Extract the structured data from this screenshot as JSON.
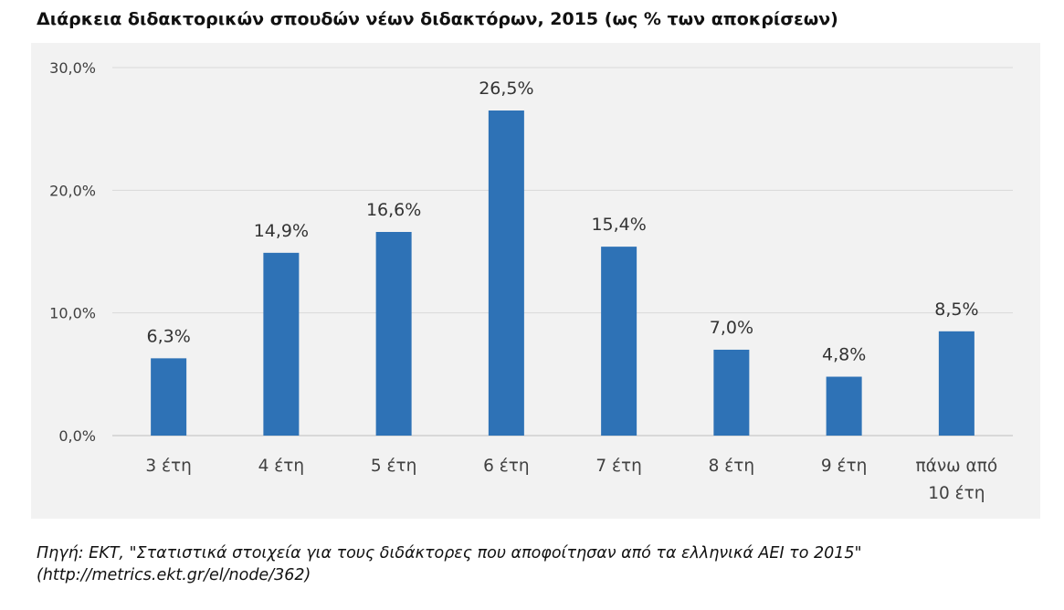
{
  "title": "Διάρκεια διδακτορικών σπουδών νέων διδακτόρων, 2015 (ως % των αποκρίσεων)",
  "source": {
    "line1": "Πηγή: ΕΚΤ, \"Στατιστικά στοιχεία για τους διδάκτορες που αποφοίτησαν από τα ελληνικά ΑΕΙ το 2015\"",
    "line2": "(http://metrics.ekt.gr/el/node/362)"
  },
  "colors": {
    "bar": "#2e72b6",
    "panel": "#f2f2f2",
    "grid": "#d9d9d9"
  },
  "chart_data": {
    "type": "bar",
    "categories": [
      [
        "3 έτη"
      ],
      [
        "4 έτη"
      ],
      [
        "5 έτη"
      ],
      [
        "6 έτη"
      ],
      [
        "7 έτη"
      ],
      [
        "8 έτη"
      ],
      [
        "9 έτη"
      ],
      [
        "πάνω από",
        "10 έτη"
      ]
    ],
    "values": [
      6.3,
      14.9,
      16.6,
      26.5,
      15.4,
      7.0,
      4.8,
      8.5
    ],
    "data_labels": [
      "6,3%",
      "14,9%",
      "16,6%",
      "26,5%",
      "15,4%",
      "7,0%",
      "4,8%",
      "8,5%"
    ],
    "y_ticks": [
      0,
      10,
      20,
      30
    ],
    "y_tick_labels": [
      "0,0%",
      "10,0%",
      "20,0%",
      "30,0%"
    ],
    "ylim": [
      0,
      30
    ],
    "grid": true,
    "legend": "none"
  }
}
